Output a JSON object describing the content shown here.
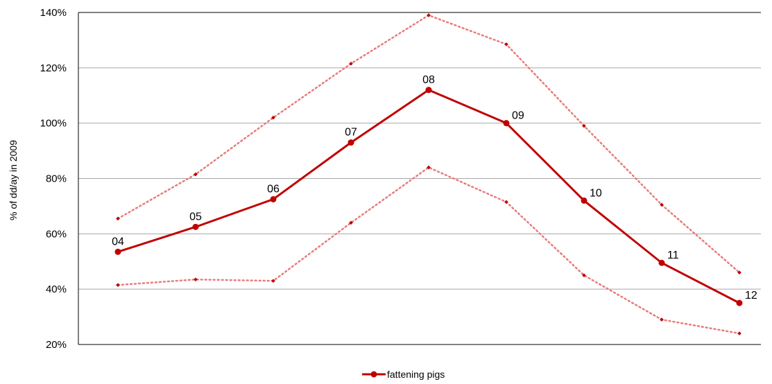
{
  "chart_data": {
    "type": "line",
    "title": "",
    "xlabel": "",
    "ylabel": "% of  dd/ay in 2009",
    "ylim": [
      20,
      140
    ],
    "yticks": [
      "20%",
      "40%",
      "60%",
      "80%",
      "100%",
      "120%",
      "140%"
    ],
    "grid": "horizontal",
    "legend_position": "bottom",
    "categories": [
      "04",
      "05",
      "06",
      "07",
      "08",
      "09",
      "10",
      "11",
      "12"
    ],
    "series": [
      {
        "name": "fattening pigs",
        "style": "solid-markers",
        "color": "#c00000",
        "values": [
          53.5,
          62.5,
          72.5,
          93,
          112,
          100,
          72,
          49.5,
          35
        ],
        "labels": [
          "04",
          "05",
          "06",
          "07",
          "08",
          "09",
          "10",
          "11",
          "12"
        ]
      },
      {
        "style": "dotted-upper",
        "color": "#e87b7b",
        "values": [
          65.5,
          81.5,
          102,
          121.5,
          139,
          128.5,
          99,
          70.5,
          46
        ]
      },
      {
        "style": "dotted-lower",
        "color": "#e87b7b",
        "values": [
          41.5,
          43.5,
          43,
          64,
          84,
          71.5,
          45,
          29,
          24
        ]
      }
    ]
  }
}
